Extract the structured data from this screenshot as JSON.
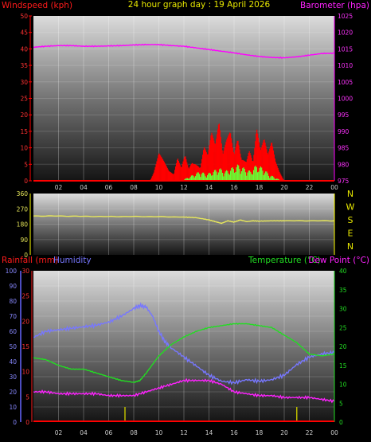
{
  "header": {
    "wind_title": "Windspeed (kph)",
    "graph_title": "24 hour graph day : 19 April 2026",
    "baro_title": "Barometer (hpa)",
    "rain_title": "Rainfall (mm)",
    "hum_title": "Humidity",
    "temp_title": "Temperature (°C)",
    "dew_title": "Dew Point (°C)"
  },
  "colors": {
    "wind": "#ff0000",
    "gust": "#66ff33",
    "baro": "#ff00ff",
    "direction": "#e8e85a",
    "rain": "#ff0000",
    "humidity": "#7777ff",
    "temperature": "#22dd22",
    "dewpoint": "#ff22ff",
    "rain_marks": "#bbbb00",
    "axis": "#999999"
  },
  "chart_data": [
    {
      "type": "line",
      "name": "wind-barometer",
      "x_ticks": [
        "02",
        "04",
        "06",
        "08",
        "10",
        "12",
        "14",
        "16",
        "18",
        "20",
        "22",
        "00"
      ],
      "y_left": {
        "label": "Windspeed (kph)",
        "range": [
          0,
          50
        ],
        "ticks": [
          "0",
          "5",
          "10",
          "15",
          "20",
          "25",
          "30",
          "35",
          "40",
          "45",
          "50"
        ]
      },
      "y_right": {
        "label": "Barometer (hpa)",
        "range": [
          975,
          1025
        ],
        "ticks": [
          "975",
          "980",
          "985",
          "990",
          "995",
          "1000",
          "1005",
          "1010",
          "1015",
          "1020",
          "1025"
        ]
      },
      "series": [
        {
          "name": "Barometer (hpa)",
          "x_hours": [
            0,
            1,
            2,
            3,
            4,
            5,
            6,
            7,
            8,
            9,
            10,
            11,
            12,
            13,
            14,
            15,
            16,
            17,
            18,
            19,
            20,
            21,
            22,
            23,
            24
          ],
          "values": [
            1015.5,
            1015.8,
            1016.0,
            1016.0,
            1015.8,
            1015.8,
            1015.9,
            1016.0,
            1016.2,
            1016.3,
            1016.3,
            1016.0,
            1015.8,
            1015.3,
            1014.8,
            1014.3,
            1013.8,
            1013.2,
            1012.7,
            1012.4,
            1012.3,
            1012.6,
            1013.1,
            1013.6,
            1013.7
          ]
        },
        {
          "name": "Windspeed (kph)",
          "x_hours": [
            0,
            9.3,
            9.6,
            10,
            10.4,
            10.8,
            11.2,
            11.5,
            11.8,
            12.1,
            12.4,
            12.7,
            13,
            13.3,
            13.6,
            13.9,
            14.2,
            14.5,
            14.8,
            15.1,
            15.4,
            15.7,
            16,
            16.3,
            16.6,
            16.9,
            17.2,
            17.5,
            17.8,
            18.1,
            18.4,
            18.7,
            19,
            19.3,
            19.6,
            20,
            24
          ],
          "values": [
            0,
            0,
            3,
            9,
            6,
            3,
            2,
            8,
            5,
            12,
            7,
            15,
            10,
            6,
            14,
            9,
            16,
            11,
            18,
            8,
            13,
            17,
            10,
            19,
            12,
            15,
            20,
            9,
            22,
            11,
            14,
            8,
            12,
            6,
            3,
            0,
            0
          ]
        },
        {
          "name": "Gust (kph)",
          "x_hours": [
            0,
            11.8,
            12.3,
            12.8,
            13.3,
            13.8,
            14.3,
            14.8,
            15.3,
            15.8,
            16.3,
            16.8,
            17.3,
            17.8,
            18.3,
            18.8,
            19.3,
            19.8,
            24
          ],
          "values": [
            0,
            0,
            1,
            2,
            3,
            2,
            3,
            4,
            3,
            4,
            5,
            4,
            3,
            5,
            4,
            2,
            1,
            0,
            0
          ]
        }
      ]
    },
    {
      "type": "line",
      "name": "wind-direction",
      "y_left": {
        "range": [
          0,
          360
        ],
        "ticks": [
          "0",
          "90",
          "180",
          "270",
          "360"
        ]
      },
      "direction_labels": [
        "N",
        "W",
        "S",
        "E",
        "N"
      ],
      "series": [
        {
          "name": "Wind direction",
          "x_hours": [
            0,
            2,
            4,
            6,
            8,
            10,
            12,
            13,
            14,
            14.5,
            15,
            15.5,
            16,
            16.5,
            17,
            17.5,
            18,
            19,
            20,
            22,
            24
          ],
          "values": [
            228,
            228,
            226,
            225,
            225,
            224,
            222,
            218,
            205,
            195,
            185,
            200,
            192,
            205,
            195,
            200,
            198,
            200,
            200,
            200,
            200
          ]
        }
      ]
    },
    {
      "type": "line",
      "name": "rain-humidity-temperature",
      "x_ticks": [
        "02",
        "04",
        "06",
        "08",
        "10",
        "12",
        "14",
        "16",
        "18",
        "20",
        "22",
        "00"
      ],
      "y_humidity": {
        "range": [
          0,
          100
        ],
        "ticks": [
          "0",
          "10",
          "20",
          "30",
          "40",
          "50",
          "60",
          "70",
          "80",
          "90",
          "100"
        ]
      },
      "y_rain": {
        "range": [
          0,
          30
        ],
        "ticks": [
          "0",
          "5",
          "10",
          "15",
          "20",
          "25",
          "30"
        ]
      },
      "y_temp": {
        "range": [
          0,
          40
        ],
        "ticks": [
          "0",
          "5",
          "10",
          "15",
          "20",
          "25",
          "30",
          "35",
          "40"
        ]
      },
      "series": [
        {
          "name": "Humidity",
          "x_hours": [
            0,
            1,
            2,
            3,
            4,
            5,
            6,
            7,
            8,
            8.5,
            9,
            9.5,
            10,
            10.5,
            11,
            12,
            13,
            14,
            15,
            16,
            17,
            18,
            19,
            20,
            21,
            22,
            23,
            24
          ],
          "values": [
            56,
            60,
            61,
            62,
            63,
            64,
            66,
            70,
            75,
            77,
            76,
            70,
            60,
            53,
            49,
            43,
            37,
            31,
            27,
            26,
            28,
            27,
            28,
            31,
            38,
            43,
            45,
            46
          ]
        },
        {
          "name": "Temperature (°C)",
          "x_hours": [
            0,
            1,
            2,
            3,
            4,
            5,
            6,
            7,
            8,
            8.5,
            9,
            10,
            11,
            12,
            13,
            14,
            15,
            16,
            17,
            18,
            19,
            20,
            21,
            22,
            23,
            24
          ],
          "values": [
            17,
            16.5,
            15,
            14,
            14,
            13,
            12,
            11,
            10.5,
            11,
            13,
            17.5,
            20.5,
            22.5,
            24,
            25,
            25.5,
            26,
            26,
            25.5,
            25,
            23,
            21,
            18,
            17.5,
            18
          ]
        },
        {
          "name": "Dew Point (°C)",
          "x_hours": [
            0,
            1,
            2,
            3,
            4,
            5,
            6,
            7,
            8,
            9,
            10,
            11,
            12,
            13,
            14,
            15,
            16,
            17,
            18,
            19,
            20,
            21,
            22,
            23,
            24
          ],
          "values": [
            8,
            8,
            7.5,
            7.5,
            7.5,
            7.5,
            7,
            7,
            7,
            8,
            9,
            10,
            11,
            11,
            11,
            10,
            8,
            7.5,
            7,
            7,
            6.5,
            6.5,
            6.5,
            6,
            5.5
          ]
        },
        {
          "name": "Rainfall (mm)",
          "x_hours": [
            7.3,
            21
          ],
          "values": [
            2,
            2
          ]
        }
      ]
    }
  ]
}
